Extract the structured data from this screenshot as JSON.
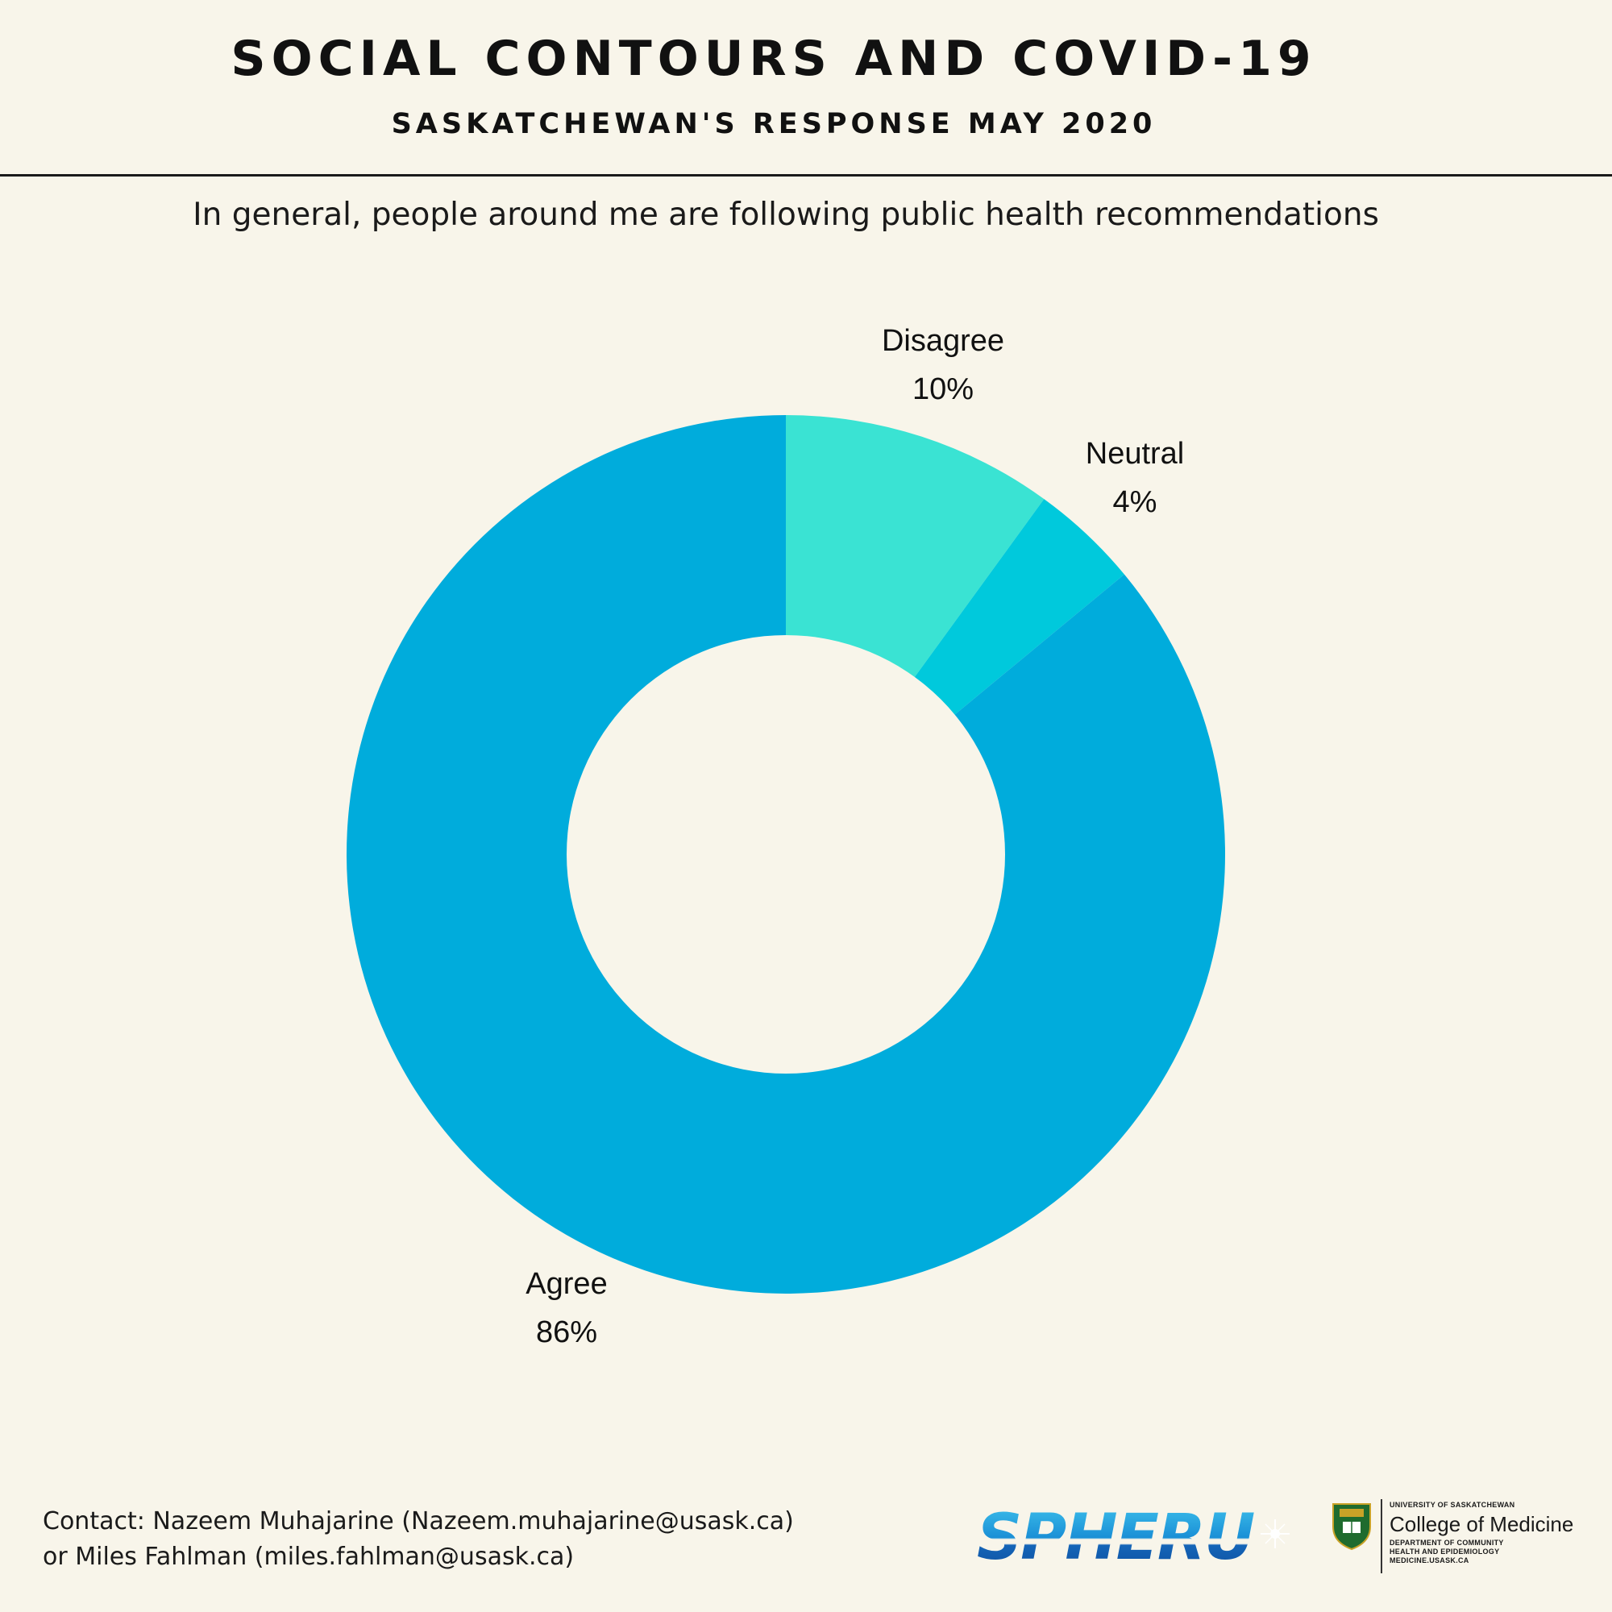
{
  "header": {
    "title": "SOCIAL CONTOURS AND COVID-19",
    "subtitle": "SASKATCHEWAN'S RESPONSE MAY 2020"
  },
  "question": "In general, people around me are following public health recommendations",
  "chart_data": {
    "type": "pie",
    "variant": "donut",
    "title": "In general, people around me are following public health recommendations",
    "categories": [
      "Disagree",
      "Neutral",
      "Agree"
    ],
    "values": [
      10,
      4,
      86
    ],
    "value_labels": [
      "10%",
      "4%",
      "86%"
    ],
    "unit": "%",
    "colors": [
      "#3ae3d3",
      "#00c9dc",
      "#00acdc"
    ],
    "start_angle_deg": 0,
    "direction": "clockwise",
    "hole_color": "#f8f5ea"
  },
  "footer": {
    "contact_line1": "Contact: Nazeem Muhajarine (Nazeem.muhajarine@usask.ca)",
    "contact_line2": "or Miles Fahlman (miles.fahlman@usask.ca)",
    "logo_spheru": "SPHERU",
    "uofs_name": "UNIVERSITY OF SASKATCHEWAN",
    "college": "College of Medicine",
    "dept_line1": "DEPARTMENT OF COMMUNITY",
    "dept_line2": "HEALTH AND EPIDEMIOLOGY",
    "website": "MEDICINE.USASK.CA"
  }
}
